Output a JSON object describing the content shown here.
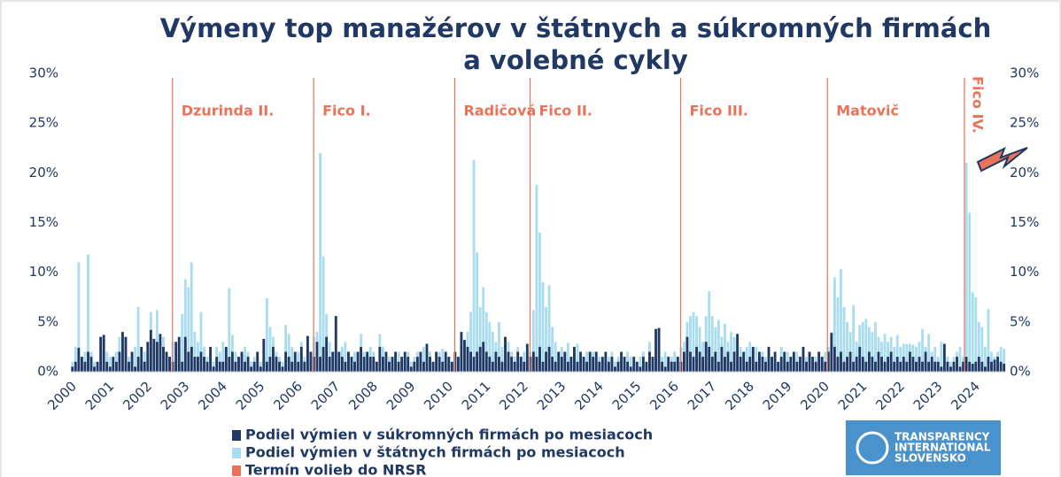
{
  "chart_data": {
    "type": "bar",
    "title": [
      "Výmeny top manažérov v štátnych a súkromných firmách",
      "a volebné cykly"
    ],
    "categories": [
      "2000",
      null,
      null,
      null,
      null,
      null,
      null,
      null,
      null,
      null,
      null,
      null,
      "2001",
      null,
      null,
      null,
      null,
      null,
      null,
      null,
      null,
      null,
      null,
      null,
      "2002",
      null,
      null,
      null,
      null,
      null,
      null,
      null,
      null,
      null,
      null,
      null,
      "2003",
      null,
      null,
      null,
      null,
      null,
      null,
      null,
      null,
      null,
      null,
      null,
      "2004",
      null,
      null,
      null,
      null,
      null,
      null,
      null,
      null,
      null,
      null,
      null,
      "2005",
      null,
      null,
      null,
      null,
      null,
      null,
      null,
      null,
      null,
      null,
      null,
      "2006",
      null,
      null,
      null,
      null,
      null,
      null,
      null,
      null,
      null,
      null,
      null,
      "2007",
      null,
      null,
      null,
      null,
      null,
      null,
      null,
      null,
      null,
      null,
      null,
      "2008",
      null,
      null,
      null,
      null,
      null,
      null,
      null,
      null,
      null,
      null,
      null,
      "2009",
      null,
      null,
      null,
      null,
      null,
      null,
      null,
      null,
      null,
      null,
      null,
      "2010",
      null,
      null,
      null,
      null,
      null,
      null,
      null,
      null,
      null,
      null,
      null,
      "2011",
      null,
      null,
      null,
      null,
      null,
      null,
      null,
      null,
      null,
      null,
      null,
      "2012",
      null,
      null,
      null,
      null,
      null,
      null,
      null,
      null,
      null,
      null,
      null,
      "2013",
      null,
      null,
      null,
      null,
      null,
      null,
      null,
      null,
      null,
      null,
      null,
      "2014",
      null,
      null,
      null,
      null,
      null,
      null,
      null,
      null,
      null,
      null,
      null,
      "2015",
      null,
      null,
      null,
      null,
      null,
      null,
      null,
      null,
      null,
      null,
      null,
      "2016",
      null,
      null,
      null,
      null,
      null,
      null,
      null,
      null,
      null,
      null,
      null,
      "2017",
      null,
      null,
      null,
      null,
      null,
      null,
      null,
      null,
      null,
      null,
      null,
      "2018",
      null,
      null,
      null,
      null,
      null,
      null,
      null,
      null,
      null,
      null,
      null,
      "2019",
      null,
      null,
      null,
      null,
      null,
      null,
      null,
      null,
      null,
      null,
      null,
      "2020",
      null,
      null,
      null,
      null,
      null,
      null,
      null,
      null,
      null,
      null,
      null,
      "2021",
      null,
      null,
      null,
      null,
      null,
      null,
      null,
      null,
      null,
      null,
      null,
      "2022",
      null,
      null,
      null,
      null,
      null,
      null,
      null,
      null,
      null,
      null,
      null,
      "2023",
      null,
      null,
      null,
      null,
      null,
      null,
      null,
      null,
      null,
      null,
      null,
      "2024",
      null,
      null,
      null,
      null,
      null,
      null,
      null,
      null,
      null
    ],
    "series": [
      {
        "name": "Podiel výmien v štátnych firmách po mesiacoch",
        "color": "#aadcf0",
        "values": [
          1.0,
          2.5,
          11.0,
          1.5,
          2.0,
          11.8,
          2.0,
          1.0,
          0.5,
          1.5,
          1.0,
          2.0,
          1.5,
          1.0,
          2.0,
          3.5,
          1.0,
          2.0,
          1.5,
          1.0,
          2.5,
          6.5,
          1.0,
          2.0,
          2.0,
          6.0,
          3.0,
          6.2,
          2.0,
          3.5,
          2.0,
          1.5,
          3.0,
          1.0,
          2.0,
          5.8,
          9.3,
          8.5,
          11.0,
          4.0,
          3.0,
          6.0,
          2.5,
          1.5,
          2.0,
          1.0,
          2.5,
          2.0,
          3.0,
          1.5,
          8.4,
          3.7,
          2.0,
          1.5,
          1.0,
          2.5,
          2.0,
          1.0,
          1.5,
          2.0,
          1.0,
          1.5,
          7.4,
          4.5,
          3.5,
          2.0,
          1.5,
          1.0,
          4.7,
          3.8,
          2.5,
          1.5,
          2.0,
          3.0,
          1.5,
          2.5,
          1.5,
          3.5,
          4.0,
          22.0,
          11.6,
          5.8,
          3.0,
          2.0,
          2.0,
          1.5,
          2.5,
          3.0,
          2.0,
          1.5,
          2.0,
          1.5,
          3.8,
          2.0,
          1.5,
          2.5,
          2.0,
          1.0,
          3.8,
          2.5,
          2.0,
          1.5,
          1.0,
          1.5,
          2.0,
          1.0,
          1.5,
          2.0,
          1.0,
          1.5,
          2.0,
          1.0,
          2.5,
          1.5,
          2.0,
          1.0,
          1.5,
          2.0,
          2.3,
          1.0,
          1.5,
          1.0,
          2.0,
          1.5,
          2.5,
          3.0,
          4.0,
          6.0,
          21.3,
          12.0,
          6.5,
          8.5,
          6.0,
          5.0,
          4.0,
          3.0,
          5.0,
          2.5,
          3.5,
          3.0,
          2.0,
          1.5,
          2.5,
          1.5,
          2.0,
          1.5,
          2.0,
          6.2,
          18.8,
          14.0,
          9.0,
          6.5,
          8.7,
          4.5,
          3.0,
          2.0,
          2.5,
          2.0,
          2.9,
          1.5,
          2.0,
          2.8,
          1.5,
          1.0,
          2.0,
          1.5,
          2.0,
          1.0,
          1.5,
          1.0,
          1.0,
          1.5,
          2.0,
          1.0,
          1.5,
          1.0,
          1.0,
          2.0,
          1.5,
          1.0,
          1.0,
          1.5,
          2.0,
          1.0,
          3.0,
          1.5,
          2.0,
          1.0,
          1.5,
          2.0,
          1.0,
          1.5,
          2.0,
          1.5,
          2.5,
          3.0,
          5.0,
          5.6,
          6.0,
          5.6,
          4.5,
          3.0,
          5.6,
          8.1,
          5.6,
          4.5,
          5.2,
          3.5,
          4.8,
          3.0,
          4.0,
          3.5,
          3.0,
          2.5,
          2.0,
          2.5,
          3.0,
          2.0,
          2.5,
          1.5,
          2.0,
          1.5,
          2.5,
          1.5,
          2.0,
          1.0,
          2.5,
          1.5,
          2.0,
          1.0,
          1.5,
          2.0,
          1.5,
          1.0,
          1.5,
          2.0,
          1.0,
          1.5,
          2.0,
          1.5,
          2.0,
          2.5,
          4.0,
          9.5,
          7.5,
          10.3,
          6.5,
          5.0,
          4.0,
          6.7,
          3.0,
          4.7,
          5.0,
          5.3,
          4.5,
          4.0,
          5.0,
          3.5,
          3.0,
          3.8,
          3.0,
          3.5,
          2.5,
          3.7,
          2.5,
          2.8,
          2.8,
          2.8,
          2.7,
          2.5,
          3.0,
          4.3,
          2.5,
          3.8,
          2.0,
          2.5,
          1.5,
          3.0,
          2.0,
          1.5,
          1.0,
          1.5,
          2.0,
          2.5,
          1.5,
          21.0,
          16.0,
          8.0,
          7.5,
          5.0,
          4.5,
          2.5,
          6.3,
          2.0,
          1.5,
          2.0,
          2.5,
          2.3
        ]
      },
      {
        "name": "Podiel výmien v súkromných firmách po mesiacoch",
        "color": "#1f3864",
        "values": [
          0.5,
          1.0,
          2.4,
          1.5,
          1.0,
          2.0,
          1.5,
          0.5,
          1.0,
          3.5,
          3.7,
          1.0,
          0.5,
          1.5,
          1.0,
          2.0,
          4.0,
          3.5,
          1.0,
          2.0,
          0.5,
          1.5,
          2.5,
          1.0,
          3.0,
          4.2,
          3.3,
          3.0,
          3.8,
          2.5,
          2.0,
          1.5,
          1.0,
          3.0,
          3.5,
          1.0,
          3.5,
          2.0,
          2.5,
          1.5,
          1.5,
          2.0,
          1.5,
          1.0,
          2.5,
          0.5,
          1.5,
          1.0,
          1.0,
          2.5,
          1.5,
          2.0,
          1.0,
          1.5,
          2.0,
          1.0,
          1.5,
          0.5,
          1.0,
          2.0,
          0.5,
          3.3,
          1.0,
          1.5,
          2.5,
          1.5,
          1.0,
          0.5,
          2.0,
          1.5,
          1.0,
          2.0,
          1.0,
          2.5,
          1.0,
          3.6,
          2.0,
          1.5,
          3.0,
          1.5,
          2.5,
          3.5,
          1.5,
          2.0,
          5.6,
          2.0,
          1.5,
          1.0,
          2.0,
          1.5,
          1.0,
          2.0,
          2.5,
          1.5,
          2.0,
          1.5,
          1.5,
          1.0,
          2.5,
          1.5,
          2.0,
          1.0,
          1.5,
          2.0,
          1.0,
          1.5,
          2.0,
          1.5,
          0.5,
          1.0,
          1.5,
          2.0,
          1.0,
          2.8,
          1.5,
          1.0,
          2.0,
          1.5,
          1.0,
          2.0,
          1.5,
          1.0,
          2.0,
          1.5,
          4.0,
          3.2,
          2.5,
          2.0,
          1.5,
          2.0,
          2.5,
          3.0,
          2.0,
          1.5,
          1.0,
          2.0,
          1.5,
          1.0,
          3.5,
          2.0,
          1.5,
          1.0,
          2.0,
          1.5,
          1.0,
          2.8,
          1.5,
          2.0,
          1.5,
          2.5,
          1.0,
          2.0,
          2.5,
          1.5,
          1.0,
          2.0,
          1.5,
          2.0,
          1.0,
          1.5,
          2.5,
          1.0,
          2.0,
          1.5,
          1.0,
          2.0,
          1.5,
          2.0,
          1.0,
          1.5,
          2.0,
          1.0,
          1.5,
          0.5,
          1.0,
          2.0,
          1.5,
          1.0,
          0.5,
          1.5,
          1.0,
          0.5,
          1.5,
          1.0,
          2.0,
          1.5,
          4.3,
          4.4,
          1.0,
          0.5,
          1.5,
          1.0,
          1.0,
          1.5,
          1.0,
          2.0,
          3.5,
          2.0,
          1.5,
          2.5,
          2.0,
          1.5,
          3.0,
          2.5,
          1.5,
          2.0,
          1.0,
          2.5,
          1.5,
          2.0,
          1.0,
          2.0,
          3.8,
          1.5,
          2.0,
          1.0,
          1.5,
          2.5,
          1.0,
          2.0,
          1.5,
          1.0,
          2.5,
          1.5,
          2.0,
          1.0,
          1.5,
          2.0,
          1.0,
          1.5,
          2.0,
          1.0,
          1.5,
          2.5,
          1.0,
          2.0,
          1.5,
          1.0,
          2.0,
          1.5,
          1.0,
          2.0,
          3.9,
          2.5,
          1.5,
          2.0,
          1.0,
          1.5,
          2.0,
          1.0,
          1.5,
          2.5,
          1.5,
          1.0,
          2.0,
          1.5,
          1.0,
          2.0,
          1.5,
          1.0,
          1.5,
          2.0,
          1.0,
          1.5,
          1.0,
          1.5,
          1.0,
          2.0,
          1.5,
          1.0,
          1.5,
          1.0,
          2.0,
          1.0,
          1.5,
          1.0,
          1.0,
          0.5,
          2.8,
          1.0,
          0.5,
          1.0,
          1.5,
          0.5,
          1.0,
          1.5,
          1.0,
          0.8,
          1.0,
          1.5,
          1.0,
          0.5,
          1.5,
          1.0,
          1.2,
          1.5,
          1.0,
          0.8
        ]
      }
    ],
    "elections": {
      "name": "Termín volieb do NRSR",
      "color": "#e8735a",
      "items": [
        {
          "label": "Dzurinda II.",
          "x": 2002.7
        },
        {
          "label": "Fico I.",
          "x": 2006.45
        },
        {
          "label": "Radičová",
          "x": 2010.2
        },
        {
          "label": "Fico II.",
          "x": 2012.2
        },
        {
          "label": "Fico III.",
          "x": 2016.2
        },
        {
          "label": "Matovič",
          "x": 2020.1
        },
        {
          "label": "Fico IV.",
          "x": 2023.74,
          "vertical": true
        }
      ]
    },
    "xlim": [
      2000,
      2024.83
    ],
    "ylim": [
      0,
      30
    ],
    "yticks": [
      {
        "value": 0,
        "label": "0%"
      },
      {
        "value": 5,
        "label": "5%"
      },
      {
        "value": 10,
        "label": "10%"
      },
      {
        "value": 15,
        "label": "15%"
      },
      {
        "value": 20,
        "label": "20%"
      },
      {
        "value": 25,
        "label": "25%"
      },
      {
        "value": 30,
        "label": "30%"
      }
    ],
    "y2lim": [
      0,
      30
    ],
    "y2ticks": [
      {
        "value": 0,
        "label": "0%"
      },
      {
        "value": 5,
        "label": "5%"
      },
      {
        "value": 10,
        "label": "10%"
      },
      {
        "value": 15,
        "label": "15%"
      },
      {
        "value": 20,
        "label": "20%"
      },
      {
        "value": 25,
        "label": "25%"
      },
      {
        "value": 30,
        "label": "30%"
      }
    ],
    "logo": [
      "TRANSPARENCY",
      "INTERNATIONAL",
      "SLOVENSKO"
    ]
  }
}
